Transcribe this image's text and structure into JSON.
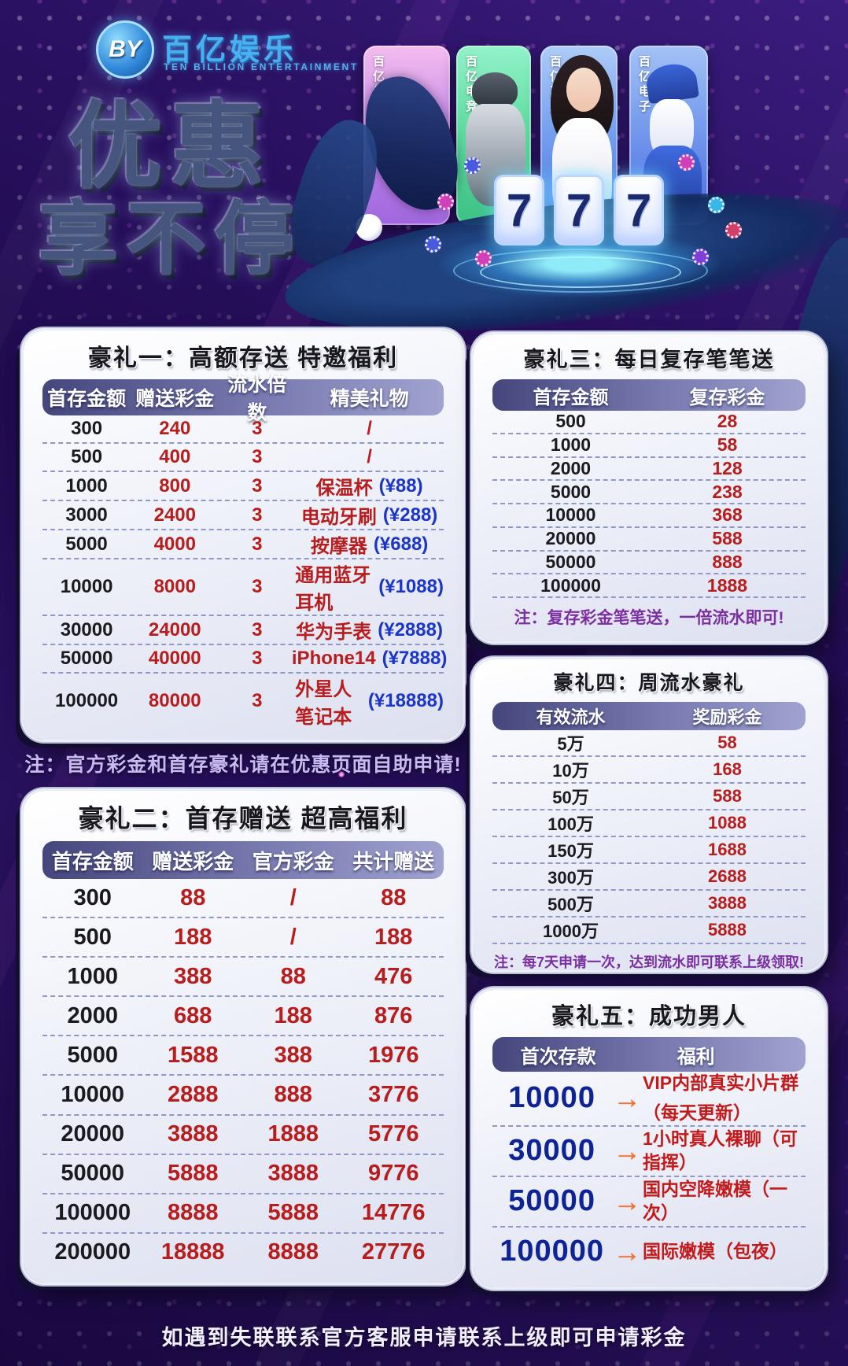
{
  "brand": {
    "logo_initials": "BY",
    "name_cn": "百亿娱乐",
    "name_en": "TEN BILLION ENTERTAINMENT"
  },
  "hero": {
    "title_line1": "优惠",
    "title_line2": "享不停",
    "slot_digits": [
      "7",
      "7",
      "7"
    ],
    "cards": [
      {
        "label": "百亿体育"
      },
      {
        "label": "百亿电竞"
      },
      {
        "label": "百亿真人"
      },
      {
        "label": "百亿电子"
      }
    ]
  },
  "icons": {
    "arrow": "→"
  },
  "tables": {
    "t1": {
      "title": "豪礼一：高额存送 特邀福利",
      "headers": [
        "首存金额",
        "赠送彩金",
        "流水倍数",
        "精美礼物"
      ],
      "rows": [
        {
          "amount": "300",
          "bonus": "240",
          "turnover": "3",
          "gift": "/",
          "price": ""
        },
        {
          "amount": "500",
          "bonus": "400",
          "turnover": "3",
          "gift": "/",
          "price": ""
        },
        {
          "amount": "1000",
          "bonus": "800",
          "turnover": "3",
          "gift": "保温杯",
          "price": "(¥88)"
        },
        {
          "amount": "3000",
          "bonus": "2400",
          "turnover": "3",
          "gift": "电动牙刷",
          "price": "(¥288)"
        },
        {
          "amount": "5000",
          "bonus": "4000",
          "turnover": "3",
          "gift": "按摩器",
          "price": "(¥688)"
        },
        {
          "amount": "10000",
          "bonus": "8000",
          "turnover": "3",
          "gift": "通用蓝牙耳机",
          "price": "(¥1088)"
        },
        {
          "amount": "30000",
          "bonus": "24000",
          "turnover": "3",
          "gift": "华为手表",
          "price": "(¥2888)"
        },
        {
          "amount": "50000",
          "bonus": "40000",
          "turnover": "3",
          "gift": "iPhone14",
          "price": "(¥7888)"
        },
        {
          "amount": "100000",
          "bonus": "80000",
          "turnover": "3",
          "gift": "外星人笔记本",
          "price": "(¥18888)"
        }
      ]
    },
    "t2": {
      "title": "豪礼二：首存赠送 超高福利",
      "headers": [
        "首存金额",
        "赠送彩金",
        "官方彩金",
        "共计赠送"
      ],
      "rows": [
        {
          "amount": "300",
          "bonus": "88",
          "official": "/",
          "total": "88"
        },
        {
          "amount": "500",
          "bonus": "188",
          "official": "/",
          "total": "188"
        },
        {
          "amount": "1000",
          "bonus": "388",
          "official": "88",
          "total": "476"
        },
        {
          "amount": "2000",
          "bonus": "688",
          "official": "188",
          "total": "876"
        },
        {
          "amount": "5000",
          "bonus": "1588",
          "official": "388",
          "total": "1976"
        },
        {
          "amount": "10000",
          "bonus": "2888",
          "official": "888",
          "total": "3776"
        },
        {
          "amount": "20000",
          "bonus": "3888",
          "official": "1888",
          "total": "5776"
        },
        {
          "amount": "50000",
          "bonus": "5888",
          "official": "3888",
          "total": "9776"
        },
        {
          "amount": "100000",
          "bonus": "8888",
          "official": "5888",
          "total": "14776"
        },
        {
          "amount": "200000",
          "bonus": "18888",
          "official": "8888",
          "total": "27776"
        }
      ]
    },
    "t3": {
      "title": "豪礼三：每日复存笔笔送",
      "headers": [
        "首存金额",
        "复存彩金"
      ],
      "rows": [
        {
          "amount": "500",
          "bonus": "28"
        },
        {
          "amount": "1000",
          "bonus": "58"
        },
        {
          "amount": "2000",
          "bonus": "128"
        },
        {
          "amount": "5000",
          "bonus": "238"
        },
        {
          "amount": "10000",
          "bonus": "368"
        },
        {
          "amount": "20000",
          "bonus": "588"
        },
        {
          "amount": "50000",
          "bonus": "888"
        },
        {
          "amount": "100000",
          "bonus": "1888"
        }
      ],
      "note": "注：复存彩金笔笔送，一倍流水即可!"
    },
    "t4": {
      "title": "豪礼四：周流水豪礼",
      "headers": [
        "有效流水",
        "奖励彩金"
      ],
      "rows": [
        {
          "turnover": "5万",
          "bonus": "58"
        },
        {
          "turnover": "10万",
          "bonus": "168"
        },
        {
          "turnover": "50万",
          "bonus": "588"
        },
        {
          "turnover": "100万",
          "bonus": "1088"
        },
        {
          "turnover": "150万",
          "bonus": "1688"
        },
        {
          "turnover": "300万",
          "bonus": "2688"
        },
        {
          "turnover": "500万",
          "bonus": "3888"
        },
        {
          "turnover": "1000万",
          "bonus": "5888"
        }
      ],
      "note": "注：每7天申请一次，达到流水即可联系上级领取!"
    },
    "t5": {
      "title": "豪礼五：成功男人",
      "headers": [
        "首次存款",
        "福利"
      ],
      "rows": [
        {
          "amount": "10000",
          "benefit_lines": [
            "VIP内部真实小片群",
            "（每天更新）"
          ]
        },
        {
          "amount": "30000",
          "benefit_lines": [
            "1小时真人裸聊（可指挥）"
          ]
        },
        {
          "amount": "50000",
          "benefit_lines": [
            "国内空降嫩模（一次）"
          ]
        },
        {
          "amount": "100000",
          "benefit_lines": [
            "国际嫩模（包夜）"
          ]
        }
      ]
    }
  },
  "notes": {
    "after_t1": "注：官方彩金和首存豪礼请在优惠页面自助申请!"
  },
  "footer": {
    "text": "如遇到失联联系官方客服申请联系上级即可申请彩金"
  },
  "palette": {
    "background": "#220d52",
    "card_face": "#f2f3fa",
    "header_bar": "#45467c",
    "number_ink": "#1a1a1f",
    "bonus_red": "#b81d1d",
    "gift_price_blue": "#1b35c8",
    "note_lavender": "#c9b9f2",
    "note_purple": "#7b2fa0",
    "amount_navy": "#0e2396",
    "arrow_orange": "#f07030",
    "brand_blue": "#49b0f2"
  }
}
